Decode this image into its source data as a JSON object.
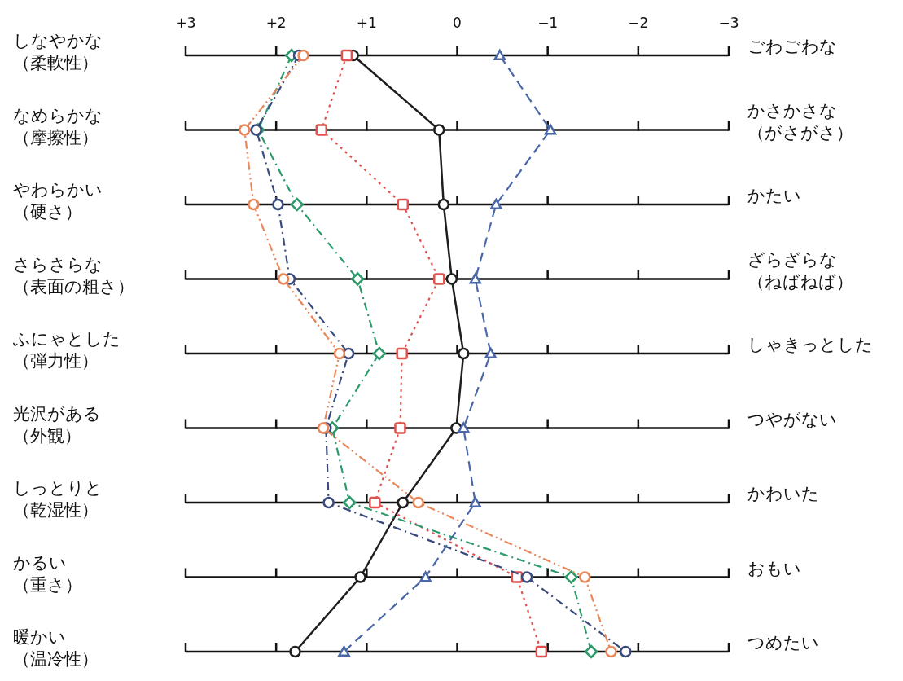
{
  "chart_data": {
    "type": "line",
    "orientation": "horizontal",
    "categories": [
      "しなやかな（柔軟性）",
      "なめらかな（摩擦性）",
      "やわらかい（硬さ）",
      "さらさらな（表面の粗さ）",
      "ふにゃとした（弾力性）",
      "光沢がある（外観）",
      "しっとりと（乾湿性）",
      "かるい（重さ）",
      "暖かい（温冷性）"
    ],
    "y2_categories": [
      "ごわごわな",
      "かさかさな（がさがさ）",
      "かたい",
      "ざらざらな（ねばねば）",
      "しゃきっとした",
      "つやがない",
      "かわいた",
      "おもい",
      "つめたい"
    ],
    "xlim": [
      3,
      -3
    ],
    "xticks": [
      {
        "value": 3,
        "label": "+3"
      },
      {
        "value": 2,
        "label": "+2"
      },
      {
        "value": 1,
        "label": "+1"
      },
      0,
      {
        "value": -1,
        "label": "−1"
      },
      {
        "value": -2,
        "label": "−2"
      },
      {
        "value": -3,
        "label": "−3"
      }
    ],
    "grid": "y",
    "series": [
      {
        "color": "#1e1e1e",
        "marker": "circle",
        "line_style": "solid",
        "values": [
          1.15,
          0.2,
          0.15,
          0.06,
          -0.07,
          0.01,
          0.6,
          1.07,
          1.79
        ]
      },
      {
        "color": "#e0524f",
        "marker": "square",
        "line_style": "dotted",
        "values": [
          1.22,
          1.5,
          0.6,
          0.2,
          0.61,
          0.63,
          0.91,
          -0.66,
          -0.93
        ]
      },
      {
        "color": "#2e9a6c",
        "marker": "diamond",
        "line_style": "dashdot",
        "values": [
          1.83,
          2.2,
          1.77,
          1.1,
          0.86,
          1.38,
          1.19,
          -1.26,
          -1.48
        ]
      },
      {
        "color": "#3b4a7c",
        "marker": "circle",
        "line_style": "dashdot",
        "values": [
          1.75,
          2.22,
          1.98,
          1.85,
          1.2,
          1.45,
          1.42,
          -0.77,
          -1.86
        ]
      },
      {
        "color": "#e8875a",
        "marker": "circle",
        "line_style": "dashdotdot",
        "values": [
          1.7,
          2.35,
          2.25,
          1.92,
          1.3,
          1.48,
          0.43,
          -1.41,
          -1.7
        ]
      },
      {
        "color": "#4a68a8",
        "marker": "triangle",
        "line_style": "dashed",
        "values": [
          -0.47,
          -1.03,
          -0.43,
          -0.2,
          -0.37,
          -0.07,
          -0.2,
          0.35,
          1.25
        ]
      }
    ]
  }
}
